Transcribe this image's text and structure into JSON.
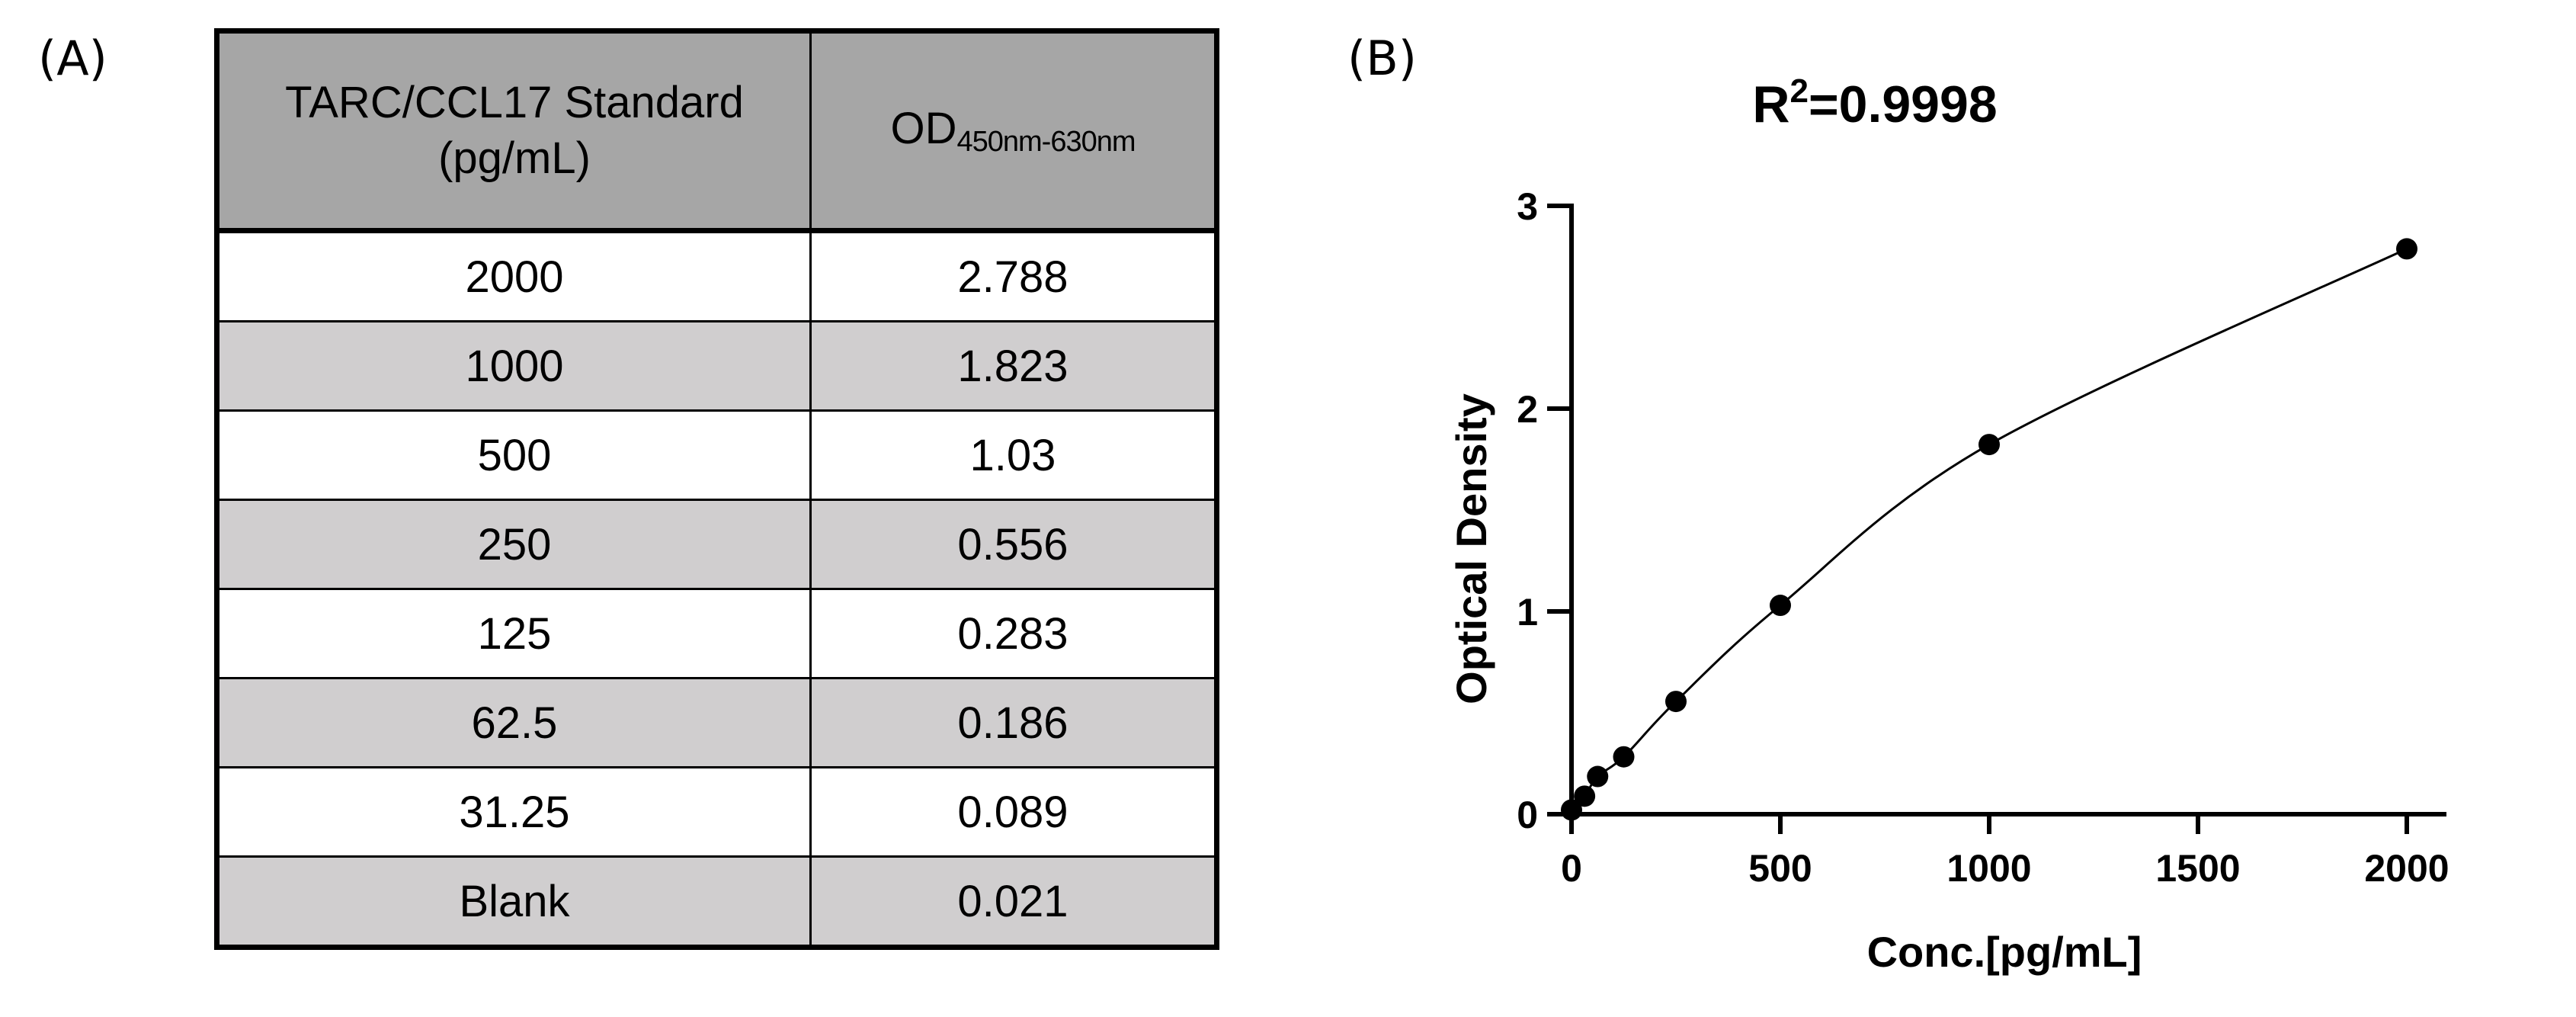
{
  "panels": {
    "a_label": "(A)",
    "b_label": "(B)"
  },
  "table": {
    "header": {
      "col1_line1": "TARC/CCL17 Standard",
      "col1_line2": "(pg/mL)",
      "col2_main": "OD",
      "col2_sub": "450nm-630nm"
    },
    "rows": [
      {
        "standard": "2000",
        "od": "2.788"
      },
      {
        "standard": "1000",
        "od": "1.823"
      },
      {
        "standard": "500",
        "od": "1.03"
      },
      {
        "standard": "250",
        "od": "0.556"
      },
      {
        "standard": "125",
        "od": "0.283"
      },
      {
        "standard": "62.5",
        "od": "0.186"
      },
      {
        "standard": "31.25",
        "od": "0.089"
      },
      {
        "standard": "Blank",
        "od": "0.021"
      }
    ]
  },
  "chart_data": {
    "type": "scatter",
    "title_main": "R",
    "title_sup": "2",
    "title_rest": "=0.9998",
    "xlabel": "Conc.[pg/mL]",
    "ylabel": "Optical Density",
    "xlim": [
      0,
      2100
    ],
    "ylim": [
      0,
      3
    ],
    "xticks": [
      0,
      500,
      1000,
      1500,
      2000
    ],
    "yticks": [
      0,
      1,
      2,
      3
    ],
    "grid": false,
    "points": [
      {
        "x": 0,
        "y": 0.021
      },
      {
        "x": 31.25,
        "y": 0.089
      },
      {
        "x": 62.5,
        "y": 0.186
      },
      {
        "x": 125,
        "y": 0.283
      },
      {
        "x": 250,
        "y": 0.556
      },
      {
        "x": 500,
        "y": 1.03
      },
      {
        "x": 1000,
        "y": 1.823
      },
      {
        "x": 2000,
        "y": 2.788
      }
    ],
    "fit_line": "smooth curve through standards",
    "marker_color": "#000000",
    "line_color": "#000000"
  }
}
